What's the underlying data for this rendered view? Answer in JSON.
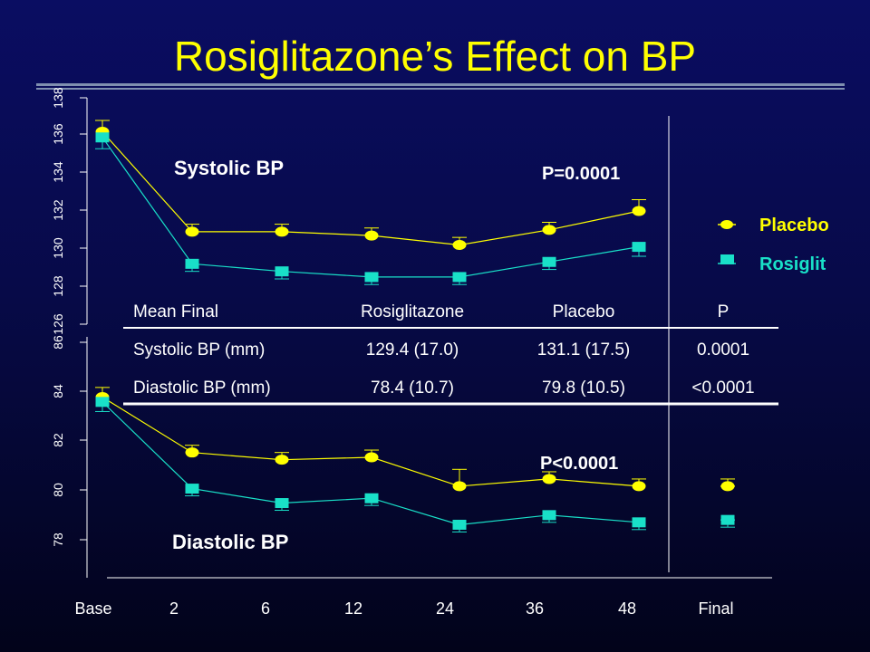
{
  "slide": {
    "title": "Rosiglitazone’s  Effect on BP",
    "title_color": "#ffff00",
    "background": "#07094e"
  },
  "legend": {
    "entries": [
      {
        "label": "Placebo",
        "color": "#ffff00"
      },
      {
        "label": "Rosiglit",
        "color": "#19e0c8"
      }
    ]
  },
  "table": {
    "headers": [
      "Mean Final",
      "Rosiglitazone",
      "Placebo",
      "P"
    ],
    "rows": [
      [
        "Systolic BP (mm)",
        "129.4 (17.0)",
        "131.1 (17.5)",
        "0.0001"
      ],
      [
        "Diastolic BP (mm)",
        "78.4 (10.7)",
        "79.8 (10.5)",
        "<0.0001"
      ]
    ]
  },
  "chart_data": [
    {
      "type": "line",
      "panel_label": "Systolic BP",
      "p_value": "P=0.0001",
      "categories": [
        "Base",
        "2",
        "6",
        "12",
        "24",
        "36",
        "48",
        "Final"
      ],
      "ylim": [
        126,
        138
      ],
      "yticks": [
        "126",
        "128",
        "130",
        "132",
        "134",
        "136",
        "138"
      ],
      "series": [
        {
          "name": "Placebo",
          "color": "#ffff00",
          "marker": "circle",
          "values": [
            136.2,
            130.9,
            130.9,
            130.7,
            130.2,
            131.0,
            132.0,
            null
          ],
          "err": [
            0.6,
            0.4,
            0.4,
            0.4,
            0.4,
            0.4,
            0.6,
            null
          ]
        },
        {
          "name": "Rosiglit",
          "color": "#19e0c8",
          "marker": "square",
          "values": [
            135.9,
            129.2,
            128.8,
            128.5,
            128.5,
            129.3,
            130.1,
            null
          ],
          "err": [
            0.6,
            0.4,
            0.4,
            0.4,
            0.4,
            0.4,
            0.5,
            null
          ]
        }
      ]
    },
    {
      "type": "line",
      "panel_label": "Diastolic BP",
      "p_value": "P<0.0001",
      "categories": [
        "Base",
        "2",
        "6",
        "12",
        "24",
        "36",
        "48",
        "Final"
      ],
      "ylim": [
        76,
        86
      ],
      "yticks": [
        "78",
        "80",
        "82",
        "84",
        "86"
      ],
      "series": [
        {
          "name": "Placebo",
          "color": "#ffff00",
          "marker": "circle",
          "values": [
            83.5,
            81.2,
            80.9,
            81.0,
            79.8,
            80.1,
            79.8,
            79.8
          ],
          "err": [
            0.4,
            0.3,
            0.3,
            0.3,
            0.7,
            0.3,
            0.3,
            0.3
          ]
        },
        {
          "name": "Rosiglit",
          "color": "#19e0c8",
          "marker": "square",
          "values": [
            83.3,
            79.7,
            79.1,
            79.3,
            78.2,
            78.6,
            78.3,
            78.4
          ],
          "err": [
            0.4,
            0.3,
            0.3,
            0.3,
            0.3,
            0.3,
            0.3,
            0.3
          ]
        }
      ]
    }
  ]
}
